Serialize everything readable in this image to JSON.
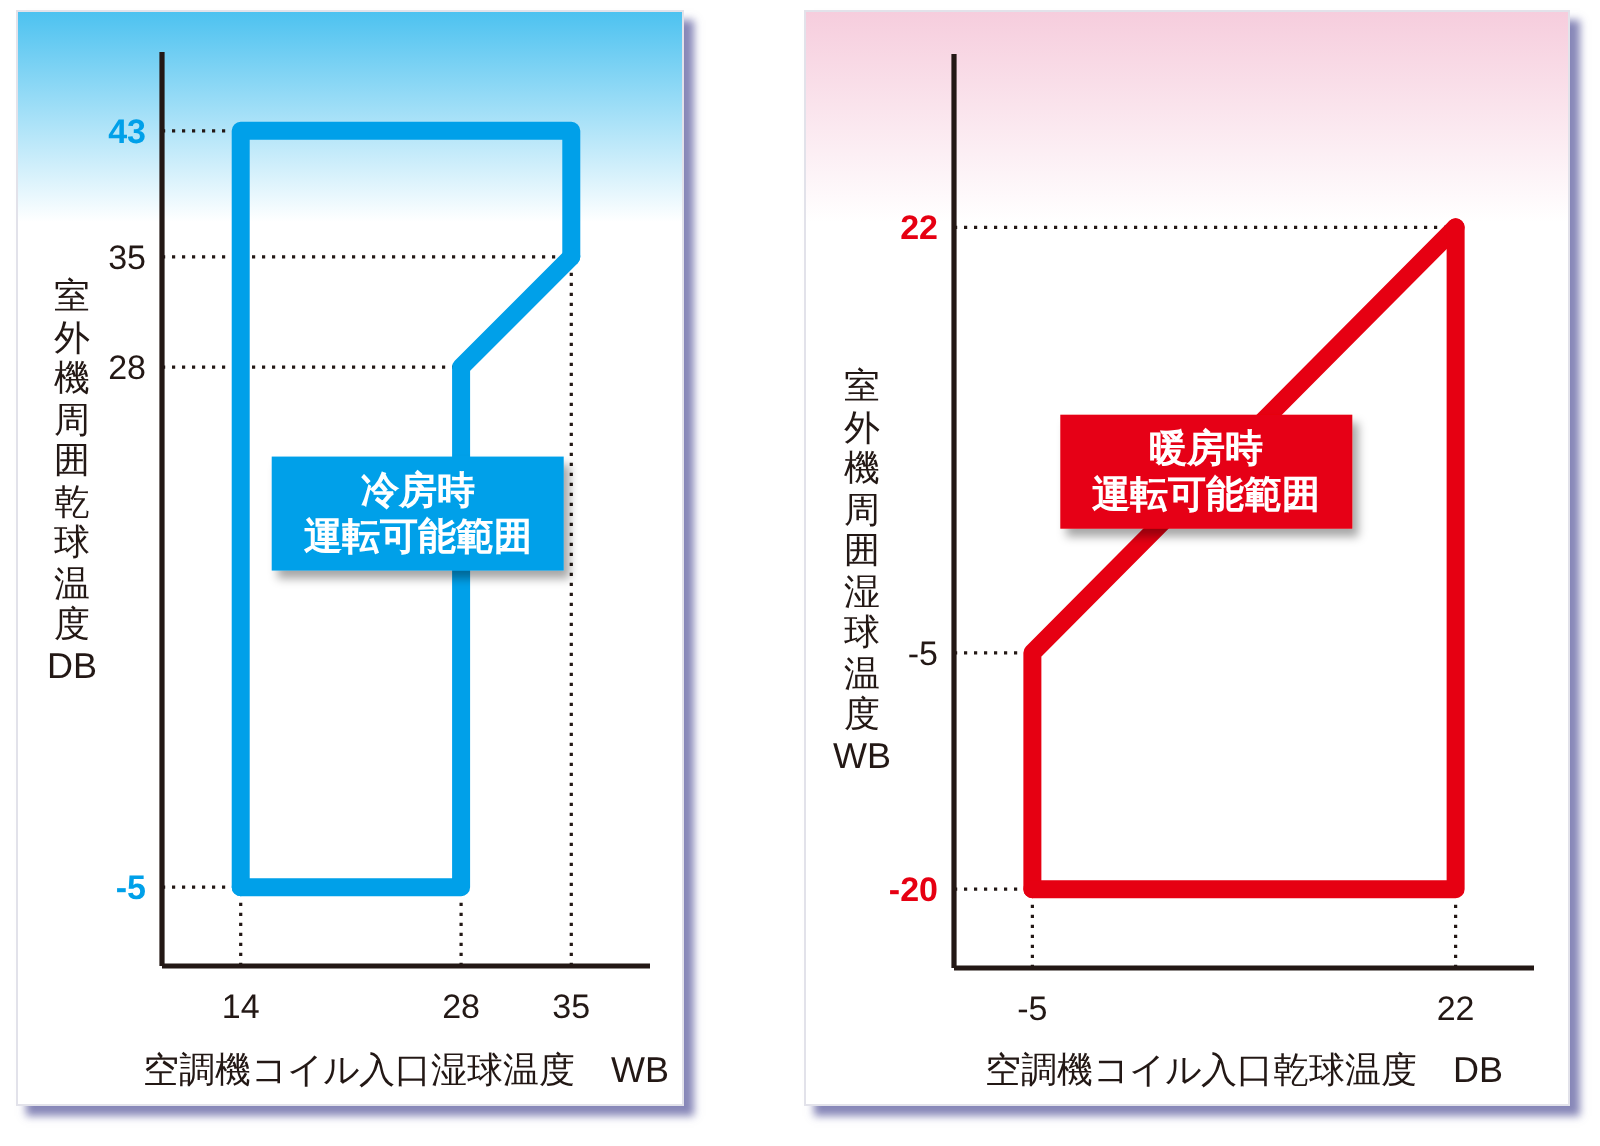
{
  "chart_data": [
    {
      "type": "line",
      "xlabel": "空調機コイル入口湿球温度　WB",
      "ylabel": "室外機周囲乾球温度DB",
      "series": [
        {
          "color": "#00a0e9",
          "x": [
            14,
            14,
            35,
            35
          ],
          "values": [
            -5,
            43,
            43,
            35
          ]
        },
        {
          "color": "#00a0e9",
          "x": [
            14,
            28,
            28,
            35
          ],
          "values": [
            -5,
            -5,
            28,
            35
          ]
        }
      ],
      "xlim": [
        9,
        40
      ],
      "ylim": [
        -10,
        48
      ],
      "xticks": [
        14,
        28,
        35
      ],
      "yticks": [
        -5,
        28,
        35,
        43
      ],
      "ref_lines": [
        {
          "axis": "y",
          "value": 43,
          "color": "#231815",
          "line_style": "dotted"
        },
        {
          "axis": "y",
          "value": 35,
          "color": "#231815",
          "line_style": "dotted"
        },
        {
          "axis": "y",
          "value": 28,
          "color": "#231815",
          "line_style": "dotted"
        },
        {
          "axis": "y",
          "value": -5,
          "color": "#231815",
          "line_style": "dotted"
        },
        {
          "axis": "x",
          "value": 14,
          "color": "#231815",
          "line_style": "dotted"
        },
        {
          "axis": "x",
          "value": 28,
          "color": "#231815",
          "line_style": "dotted"
        },
        {
          "axis": "x",
          "value": 35,
          "color": "#231815",
          "line_style": "dotted"
        }
      ],
      "annotations": [
        "冷房時",
        "運転可能範囲"
      ]
    },
    {
      "type": "line",
      "xlabel": "空調機コイル入口乾球温度　DB",
      "ylabel": "室外機周囲湿球温度WB",
      "series": [
        {
          "color": "#e60012",
          "x": [
            -5,
            -5,
            22
          ],
          "values": [
            -20,
            -5,
            22
          ]
        },
        {
          "color": "#e60012",
          "x": [
            -5,
            22,
            22
          ],
          "values": [
            -20,
            -20,
            22
          ]
        }
      ],
      "xlim": [
        -10,
        27
      ],
      "ylim": [
        -25,
        33
      ],
      "xticks": [
        -5,
        22
      ],
      "yticks": [
        -20,
        -5,
        22
      ],
      "ref_lines": [
        {
          "axis": "y",
          "value": 22,
          "color": "#231815",
          "line_style": "dotted"
        },
        {
          "axis": "y",
          "value": -5,
          "color": "#231815",
          "line_style": "dotted"
        },
        {
          "axis": "y",
          "value": -20,
          "color": "#231815",
          "line_style": "dotted"
        },
        {
          "axis": "x",
          "value": -5,
          "color": "#231815",
          "line_style": "dotted"
        },
        {
          "axis": "x",
          "value": 22,
          "color": "#231815",
          "line_style": "dotted"
        }
      ],
      "annotations": [
        "暖房時",
        "運転可能範囲"
      ]
    }
  ]
}
